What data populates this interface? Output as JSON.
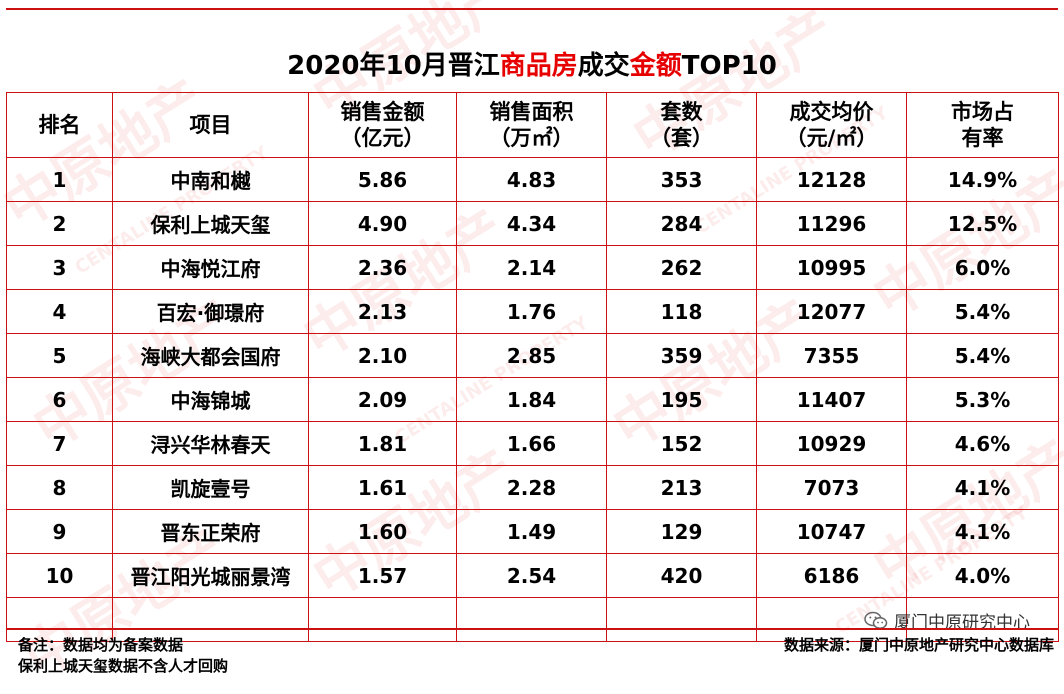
{
  "title": {
    "part1": "2020年10月晋江",
    "part2": "商品房",
    "part3": "成交",
    "part4": "金额",
    "part5": "TOP10"
  },
  "headers": {
    "rank": "排名",
    "project": "项目",
    "sales_amount_line1": "销售金额",
    "sales_amount_line2": "（亿元）",
    "sales_area_line1": "销售面积",
    "sales_area_line2": "（万㎡）",
    "units_line1": "套数",
    "units_line2": "（套）",
    "avg_price_line1": "成交均价",
    "avg_price_line2": "（元/㎡）",
    "share_line1": "市场占",
    "share_line2": "有率"
  },
  "rows": [
    {
      "rank": "1",
      "project": "中南和樾",
      "amount": "5.86",
      "area": "4.83",
      "units": "353",
      "price": "12128",
      "share": "14.9%"
    },
    {
      "rank": "2",
      "project": "保利上城天玺",
      "amount": "4.90",
      "area": "4.34",
      "units": "284",
      "price": "11296",
      "share": "12.5%"
    },
    {
      "rank": "3",
      "project": "中海悦江府",
      "amount": "2.36",
      "area": "2.14",
      "units": "262",
      "price": "10995",
      "share": "6.0%"
    },
    {
      "rank": "4",
      "project": "百宏·御璟府",
      "amount": "2.13",
      "area": "1.76",
      "units": "118",
      "price": "12077",
      "share": "5.4%"
    },
    {
      "rank": "5",
      "project": "海峡大都会国府",
      "amount": "2.10",
      "area": "2.85",
      "units": "359",
      "price": "7355",
      "share": "5.4%"
    },
    {
      "rank": "6",
      "project": "中海锦城",
      "amount": "2.09",
      "area": "1.84",
      "units": "195",
      "price": "11407",
      "share": "5.3%"
    },
    {
      "rank": "7",
      "project": "浔兴华林春天",
      "amount": "1.81",
      "area": "1.66",
      "units": "152",
      "price": "10929",
      "share": "4.6%"
    },
    {
      "rank": "8",
      "project": "凯旋壹号",
      "amount": "1.61",
      "area": "2.28",
      "units": "213",
      "price": "7073",
      "share": "4.1%"
    },
    {
      "rank": "9",
      "project": "晋东正荣府",
      "amount": "1.60",
      "area": "1.49",
      "units": "129",
      "price": "10747",
      "share": "4.1%"
    },
    {
      "rank": "10",
      "project": "晋江阳光城丽景湾",
      "amount": "1.57",
      "area": "2.54",
      "units": "420",
      "price": "6186",
      "share": "4.0%"
    }
  ],
  "notes": {
    "line1": "备注：数据均为备案数据",
    "line2": "保利上城天玺数据不含人才回购"
  },
  "source": "数据来源：厦门中原地产研究中心数据库",
  "wechat_account": "厦门中原研究中心",
  "watermark": {
    "brand_cn": "中原地产",
    "brand_en": "CENTALINE PROPERTY"
  },
  "colors": {
    "accent": "#e60000",
    "border": "#cc1111"
  }
}
